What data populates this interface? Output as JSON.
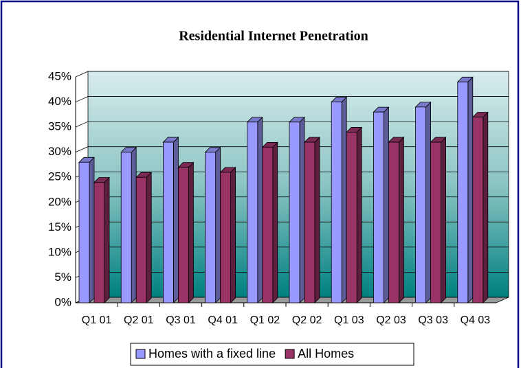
{
  "chart_data": {
    "type": "bar3d",
    "title": "Residential Internet Penetration",
    "categories": [
      "Q1 01",
      "Q2 01",
      "Q3 01",
      "Q4 01",
      "Q1 02",
      "Q2 02",
      "Q1 03",
      "Q2 03",
      "Q3 03",
      "Q4 03"
    ],
    "series": [
      {
        "name": "Homes with a fixed line",
        "color": "#9999ff",
        "values": [
          28,
          30,
          32,
          30,
          36,
          36,
          40,
          38,
          39,
          44
        ]
      },
      {
        "name": "All Homes",
        "color": "#993366",
        "values": [
          24,
          25,
          27,
          26,
          31,
          32,
          34,
          32,
          32,
          37
        ]
      }
    ],
    "ylim": [
      0,
      45
    ],
    "yticks": [
      {
        "value": 0,
        "label": "0%"
      },
      {
        "value": 5,
        "label": "5%"
      },
      {
        "value": 10,
        "label": "10%"
      },
      {
        "value": 15,
        "label": "15%"
      },
      {
        "value": 20,
        "label": "20%"
      },
      {
        "value": 25,
        "label": "25%"
      },
      {
        "value": 30,
        "label": "30%"
      },
      {
        "value": 35,
        "label": "35%"
      },
      {
        "value": 40,
        "label": "40%"
      },
      {
        "value": 45,
        "label": "45%"
      }
    ],
    "grid": true,
    "legend": "bottom"
  }
}
